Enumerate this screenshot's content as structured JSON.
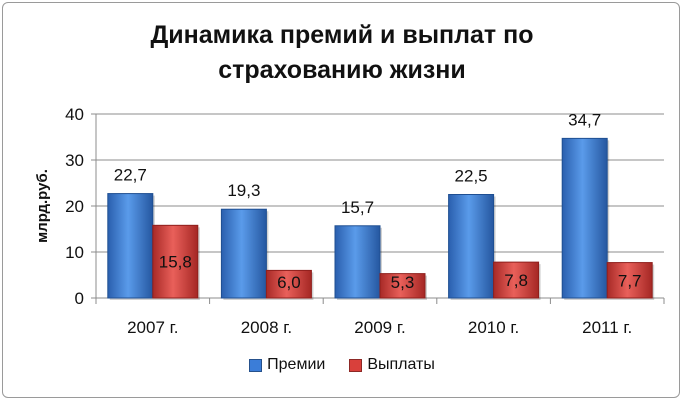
{
  "chart_data": {
    "type": "bar",
    "title": "Динамика премий и выплат по\nстрахованию жизни",
    "ylabel": "млрд.руб.",
    "xlabel": "",
    "categories": [
      "2007 г.",
      "2008 г.",
      "2009 г.",
      "2010 г.",
      "2011 г."
    ],
    "series": [
      {
        "name": "Премии",
        "values": [
          22.7,
          19.3,
          15.7,
          22.5,
          34.7
        ],
        "labels": [
          "22,7",
          "19,3",
          "15,7",
          "22,5",
          "34,7"
        ],
        "color": "#3b7dd8"
      },
      {
        "name": "Выплаты",
        "values": [
          15.8,
          6.0,
          5.3,
          7.8,
          7.7
        ],
        "labels": [
          "15,8",
          "6,0",
          "5,3",
          "7,8",
          "7,7"
        ],
        "color": "#d9403b"
      }
    ],
    "ylim": [
      0,
      40
    ],
    "yticks": [
      0,
      10,
      20,
      30,
      40
    ],
    "grid": true,
    "legend_position": "bottom"
  }
}
